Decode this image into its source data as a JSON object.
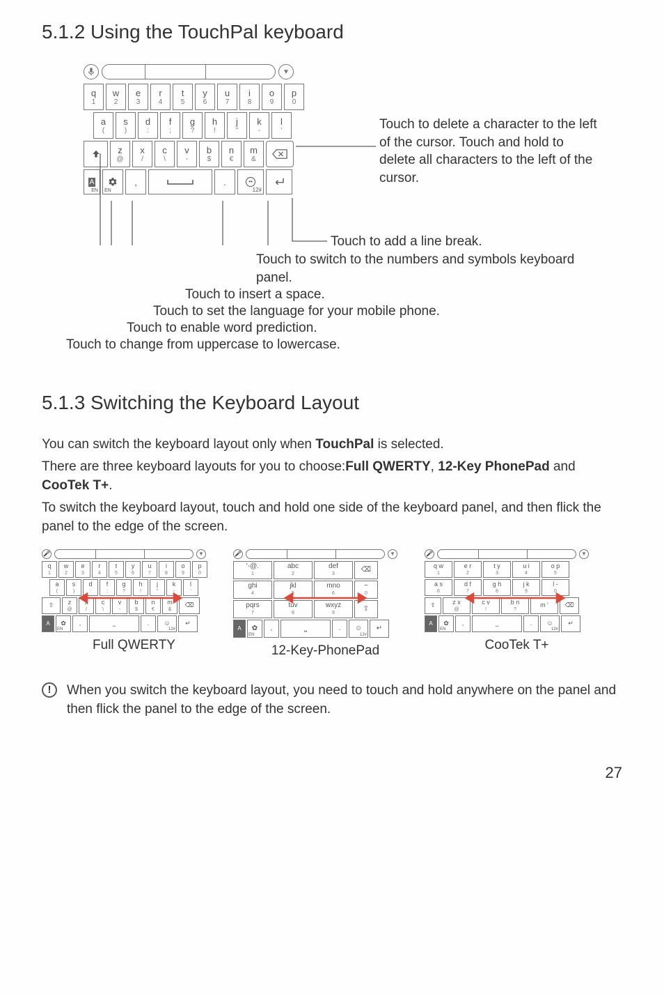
{
  "headings": {
    "s512": "5.1.2  Using the TouchPal keyboard",
    "s513": "5.1.3  Switching the Keyboard Layout"
  },
  "big_keyboard": {
    "row1": [
      {
        "main": "q",
        "sub": "1"
      },
      {
        "main": "w",
        "sub": "2"
      },
      {
        "main": "e",
        "sub": "3"
      },
      {
        "main": "r",
        "sub": "4"
      },
      {
        "main": "t",
        "sub": "5"
      },
      {
        "main": "y",
        "sub": "6"
      },
      {
        "main": "u",
        "sub": "7"
      },
      {
        "main": "i",
        "sub": "8"
      },
      {
        "main": "o",
        "sub": "9"
      },
      {
        "main": "p",
        "sub": "0"
      }
    ],
    "row2": [
      {
        "main": "a",
        "sub": "("
      },
      {
        "main": "s",
        "sub": ")"
      },
      {
        "main": "d",
        "sub": ":"
      },
      {
        "main": "f",
        "sub": ";"
      },
      {
        "main": "g",
        "sub": "?"
      },
      {
        "main": "h",
        "sub": "!"
      },
      {
        "main": "j",
        "sub": "\""
      },
      {
        "main": "k",
        "sub": "-"
      },
      {
        "main": "l",
        "sub": "'"
      }
    ],
    "row3": [
      {
        "main": "z",
        "sub": "@"
      },
      {
        "main": "x",
        "sub": "/"
      },
      {
        "main": "c",
        "sub": "\\"
      },
      {
        "main": "v",
        "sub": "-"
      },
      {
        "main": "b",
        "sub": "$"
      },
      {
        "main": "n",
        "sub": "€"
      },
      {
        "main": "m",
        "sub": "&"
      }
    ],
    "bottom": {
      "ab": "A",
      "ab_sub": "EN",
      "gear": "✿",
      "comma": ",",
      "space": "⎵",
      "dot": ".",
      "face": "☺",
      "face_sub": "12#",
      "enter": "↵"
    }
  },
  "callouts": {
    "delete": "Touch to delete a character to the left of the cursor. Touch and hold to delete all characters to the left of the cursor.",
    "linebreak": "Touch to add a line break.",
    "numsym": "Touch to switch to the numbers and symbols keyboard panel.",
    "space": "Touch to insert a space.",
    "lang": "Touch to set the language for your mobile phone.",
    "predict": "Touch to enable word prediction.",
    "case": "Touch to change from uppercase to lowercase."
  },
  "section513": {
    "p1_a": "You can switch the keyboard layout only when ",
    "p1_b": "TouchPal",
    "p1_c": " is selected.",
    "p2_a": "There are three keyboard layouts for you to choose:",
    "p2_b": "Full QWERTY",
    "p2_c": ", ",
    "p2_d": "12-Key PhonePad",
    "p2_e": " and ",
    "p2_f": "CooTek T+",
    "p2_g": ".",
    "p3": "To switch the keyboard layout, touch and hold one side of the keyboard panel, and then flick the panel to the edge of the screen."
  },
  "thumbs": {
    "qwerty_label": "Full QWERTY",
    "phonepad_label": "12-Key-PhonePad",
    "cootek_label": "CooTek T+"
  },
  "phonepad_keys": {
    "r1": [
      {
        "t": "'-@.",
        "s": "1"
      },
      {
        "t": "abc",
        "s": "2"
      },
      {
        "t": "def",
        "s": "3"
      }
    ],
    "r2": [
      {
        "t": "ghi",
        "s": "4"
      },
      {
        "t": "jkl",
        "s": "5"
      },
      {
        "t": "mno",
        "s": "6"
      }
    ],
    "r3": [
      {
        "t": "pqrs",
        "s": "7"
      },
      {
        "t": "tuv",
        "s": "8"
      },
      {
        "t": "wxyz",
        "s": "9"
      }
    ],
    "side": [
      {
        "t": "⌫"
      },
      {
        "t": "~",
        "s": "0"
      },
      {
        "t": "⇧"
      }
    ]
  },
  "cootek_keys": {
    "r1": [
      {
        "t": "q w",
        "s": "1"
      },
      {
        "t": "e r",
        "s": "2"
      },
      {
        "t": "t y",
        "s": "3"
      },
      {
        "t": "u i",
        "s": "4"
      },
      {
        "t": "o p",
        "s": "5"
      }
    ],
    "r2": [
      {
        "t": "a s",
        "s": "6"
      },
      {
        "t": "d f",
        "s": "7"
      },
      {
        "t": "g h",
        "s": "8"
      },
      {
        "t": "j k",
        "s": "9"
      },
      {
        "t": "l  -",
        "s": "0"
      }
    ],
    "r3": [
      {
        "t": "z x",
        "s": "@"
      },
      {
        "t": "c v",
        "s": "!"
      },
      {
        "t": "b n",
        "s": "?"
      },
      {
        "t": "m '",
        "s": ""
      }
    ]
  },
  "note": "When you switch the keyboard layout, you need to touch and hold anywhere on the panel and then flick the panel to the edge of the screen.",
  "page_number": "27",
  "colors": {
    "text": "#333333",
    "key_border": "#777777",
    "arrow": "#d94a3a",
    "background": "#fefefe"
  }
}
